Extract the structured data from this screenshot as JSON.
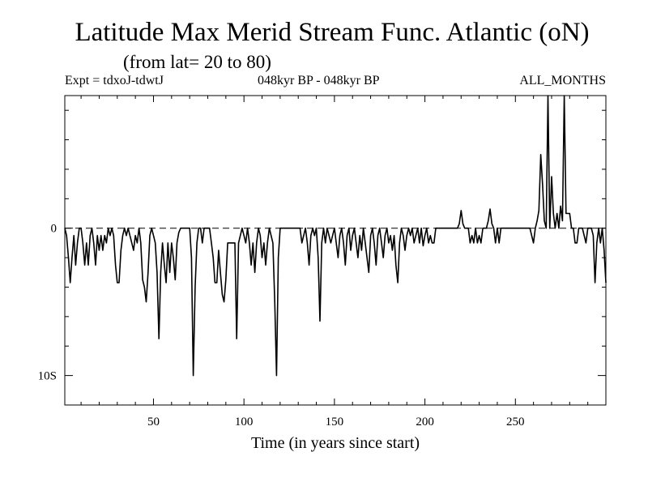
{
  "header": {
    "title": "Latitude Max Merid Stream Func. Atlantic (oN)",
    "subtitle": "(from lat= 20 to 80)",
    "expt": "Expt = tdxoJ-tdwtJ",
    "period": "048kyr BP - 048kyr BP",
    "months": "ALL_MONTHS"
  },
  "chart_data": {
    "type": "line",
    "title": "Latitude Max Merid Stream Func. Atlantic (oN)",
    "xlabel": "Time (in years since start)",
    "ylabel": "",
    "xlim": [
      1,
      300
    ],
    "ylim": [
      -12,
      9
    ],
    "reference_line": 0,
    "x_ticks": [
      50,
      100,
      150,
      200,
      250
    ],
    "y_ticks": [
      {
        "value": 0,
        "label": "0"
      },
      {
        "value": -10,
        "label": "10S"
      }
    ],
    "series": [
      {
        "color": "#000000",
        "points": [
          [
            1,
            0
          ],
          [
            2,
            -0.5
          ],
          [
            3,
            -2
          ],
          [
            4,
            -3.7
          ],
          [
            5,
            -2
          ],
          [
            6,
            -0.5
          ],
          [
            7,
            -2.5
          ],
          [
            8,
            -1
          ],
          [
            9,
            0
          ],
          [
            10,
            0
          ],
          [
            11,
            -1
          ],
          [
            12,
            -2.5
          ],
          [
            13,
            -1
          ],
          [
            14,
            -2.5
          ],
          [
            15,
            -0.5
          ],
          [
            16,
            0
          ],
          [
            17,
            -1
          ],
          [
            18,
            -2.5
          ],
          [
            19,
            -0.5
          ],
          [
            20,
            -1.5
          ],
          [
            21,
            -0.5
          ],
          [
            22,
            -1.5
          ],
          [
            23,
            -0.5
          ],
          [
            24,
            -1
          ],
          [
            25,
            0
          ],
          [
            26,
            -0.5
          ],
          [
            27,
            0
          ],
          [
            28,
            -0.5
          ],
          [
            29,
            -2.5
          ],
          [
            30,
            -3.7
          ],
          [
            31,
            -3.7
          ],
          [
            32,
            -1.5
          ],
          [
            33,
            -0.5
          ],
          [
            34,
            0
          ],
          [
            35,
            -0.5
          ],
          [
            36,
            0
          ],
          [
            37,
            -0.5
          ],
          [
            38,
            -1
          ],
          [
            39,
            -1.5
          ],
          [
            40,
            -0.5
          ],
          [
            41,
            -1
          ],
          [
            42,
            0
          ],
          [
            43,
            -1
          ],
          [
            44,
            -3.5
          ],
          [
            45,
            -4
          ],
          [
            46,
            -5
          ],
          [
            47,
            -3
          ],
          [
            48,
            -0.5
          ],
          [
            49,
            0
          ],
          [
            50,
            -0.5
          ],
          [
            51,
            -1
          ],
          [
            52,
            -3
          ],
          [
            53,
            -7.5
          ],
          [
            54,
            -3
          ],
          [
            55,
            -1
          ],
          [
            56,
            -2.5
          ],
          [
            57,
            -3.7
          ],
          [
            58,
            -1
          ],
          [
            59,
            -3
          ],
          [
            60,
            -1
          ],
          [
            61,
            -2
          ],
          [
            62,
            -3.5
          ],
          [
            63,
            -1
          ],
          [
            64,
            -0.3
          ],
          [
            65,
            0
          ],
          [
            66,
            0
          ],
          [
            67,
            0
          ],
          [
            68,
            0
          ],
          [
            69,
            0
          ],
          [
            70,
            0
          ],
          [
            71,
            -2
          ],
          [
            72,
            -10
          ],
          [
            73,
            -4
          ],
          [
            74,
            -1
          ],
          [
            75,
            0
          ],
          [
            76,
            0
          ],
          [
            77,
            -1
          ],
          [
            78,
            0
          ],
          [
            79,
            0
          ],
          [
            80,
            0
          ],
          [
            81,
            0
          ],
          [
            82,
            -1
          ],
          [
            83,
            -2
          ],
          [
            84,
            -3.7
          ],
          [
            85,
            -3.7
          ],
          [
            86,
            -1.5
          ],
          [
            87,
            -3
          ],
          [
            88,
            -4.5
          ],
          [
            89,
            -5
          ],
          [
            90,
            -3.5
          ],
          [
            91,
            -1
          ],
          [
            92,
            -1
          ],
          [
            93,
            -1
          ],
          [
            94,
            -1
          ],
          [
            95,
            -1
          ],
          [
            96,
            -7.5
          ],
          [
            97,
            -1
          ],
          [
            98,
            -0.5
          ],
          [
            99,
            0
          ],
          [
            100,
            -0.5
          ],
          [
            101,
            -1
          ],
          [
            102,
            0
          ],
          [
            103,
            -1
          ],
          [
            104,
            -2.5
          ],
          [
            105,
            -1
          ],
          [
            106,
            -3
          ],
          [
            107,
            -1
          ],
          [
            108,
            0
          ],
          [
            109,
            -0.5
          ],
          [
            110,
            -2
          ],
          [
            111,
            -1
          ],
          [
            112,
            -2.5
          ],
          [
            113,
            -1
          ],
          [
            114,
            0
          ],
          [
            115,
            -0.5
          ],
          [
            116,
            -1
          ],
          [
            117,
            -5
          ],
          [
            118,
            -10
          ],
          [
            119,
            -2
          ],
          [
            120,
            0
          ],
          [
            121,
            0
          ],
          [
            122,
            0
          ],
          [
            123,
            0
          ],
          [
            124,
            0
          ],
          [
            125,
            0
          ],
          [
            126,
            0
          ],
          [
            127,
            0
          ],
          [
            128,
            0
          ],
          [
            129,
            0
          ],
          [
            130,
            0
          ],
          [
            131,
            0
          ],
          [
            132,
            -1
          ],
          [
            133,
            -0.5
          ],
          [
            134,
            0
          ],
          [
            135,
            -1
          ],
          [
            136,
            -2.5
          ],
          [
            137,
            -0.5
          ],
          [
            138,
            0
          ],
          [
            139,
            -0.5
          ],
          [
            140,
            0
          ],
          [
            141,
            -2
          ],
          [
            142,
            -6.3
          ],
          [
            143,
            -1
          ],
          [
            144,
            0
          ],
          [
            145,
            -1
          ],
          [
            146,
            0
          ],
          [
            147,
            -0.5
          ],
          [
            148,
            -1
          ],
          [
            149,
            -0.5
          ],
          [
            150,
            0
          ],
          [
            151,
            -1
          ],
          [
            152,
            -2
          ],
          [
            153,
            -0.5
          ],
          [
            154,
            0
          ],
          [
            155,
            -1
          ],
          [
            156,
            -2.5
          ],
          [
            157,
            -0.5
          ],
          [
            158,
            0
          ],
          [
            159,
            -1.5
          ],
          [
            160,
            -0.5
          ],
          [
            161,
            0
          ],
          [
            162,
            -1
          ],
          [
            163,
            -2
          ],
          [
            164,
            -0.5
          ],
          [
            165,
            -1.5
          ],
          [
            166,
            0
          ],
          [
            167,
            -1
          ],
          [
            168,
            -2
          ],
          [
            169,
            -3
          ],
          [
            170,
            -0.5
          ],
          [
            171,
            0
          ],
          [
            172,
            -1
          ],
          [
            173,
            -2.5
          ],
          [
            174,
            -0.5
          ],
          [
            175,
            0
          ],
          [
            176,
            -1
          ],
          [
            177,
            -2
          ],
          [
            178,
            -0.5
          ],
          [
            179,
            0
          ],
          [
            180,
            -1
          ],
          [
            181,
            -0.5
          ],
          [
            182,
            -1.5
          ],
          [
            183,
            -0.5
          ],
          [
            184,
            -2.5
          ],
          [
            185,
            -3.7
          ],
          [
            186,
            -1
          ],
          [
            187,
            0
          ],
          [
            188,
            -0.5
          ],
          [
            189,
            -1.5
          ],
          [
            190,
            -0.5
          ],
          [
            191,
            0
          ],
          [
            192,
            -0.5
          ],
          [
            193,
            0
          ],
          [
            194,
            -1
          ],
          [
            195,
            -0.5
          ],
          [
            196,
            0
          ],
          [
            197,
            -1
          ],
          [
            198,
            0
          ],
          [
            199,
            -1.2
          ],
          [
            200,
            -0.5
          ],
          [
            201,
            0
          ],
          [
            202,
            -1
          ],
          [
            203,
            -0.5
          ],
          [
            204,
            -1
          ],
          [
            205,
            -1
          ],
          [
            206,
            0
          ],
          [
            207,
            0
          ],
          [
            208,
            0
          ],
          [
            209,
            0
          ],
          [
            210,
            0
          ],
          [
            211,
            0
          ],
          [
            212,
            0
          ],
          [
            213,
            0
          ],
          [
            214,
            0
          ],
          [
            215,
            0
          ],
          [
            216,
            0
          ],
          [
            217,
            0
          ],
          [
            218,
            0
          ],
          [
            219,
            0.3
          ],
          [
            220,
            1.2
          ],
          [
            221,
            0.3
          ],
          [
            222,
            0
          ],
          [
            223,
            0
          ],
          [
            224,
            0
          ],
          [
            225,
            -1
          ],
          [
            226,
            -0.5
          ],
          [
            227,
            -1
          ],
          [
            228,
            0
          ],
          [
            229,
            -1
          ],
          [
            230,
            -0.5
          ],
          [
            231,
            -1
          ],
          [
            232,
            0
          ],
          [
            233,
            0
          ],
          [
            234,
            0
          ],
          [
            235,
            0.5
          ],
          [
            236,
            1.3
          ],
          [
            237,
            0.3
          ],
          [
            238,
            0
          ],
          [
            239,
            -1
          ],
          [
            240,
            0
          ],
          [
            241,
            -1
          ],
          [
            242,
            0
          ],
          [
            243,
            0
          ],
          [
            244,
            0
          ],
          [
            245,
            0
          ],
          [
            246,
            0
          ],
          [
            247,
            0
          ],
          [
            248,
            0
          ],
          [
            249,
            0
          ],
          [
            250,
            0
          ],
          [
            251,
            0
          ],
          [
            252,
            0
          ],
          [
            253,
            0
          ],
          [
            254,
            0
          ],
          [
            255,
            0
          ],
          [
            256,
            0
          ],
          [
            257,
            0
          ],
          [
            258,
            0
          ],
          [
            259,
            -0.5
          ],
          [
            260,
            -1
          ],
          [
            261,
            0
          ],
          [
            262,
            0.5
          ],
          [
            263,
            1.2
          ],
          [
            264,
            5
          ],
          [
            265,
            3
          ],
          [
            266,
            0.5
          ],
          [
            267,
            0
          ],
          [
            268,
            9
          ],
          [
            269,
            0
          ],
          [
            270,
            3.5
          ],
          [
            271,
            1
          ],
          [
            272,
            0
          ],
          [
            273,
            1
          ],
          [
            274,
            0
          ],
          [
            275,
            1.5
          ],
          [
            276,
            0.5
          ],
          [
            277,
            9
          ],
          [
            278,
            1
          ],
          [
            279,
            1
          ],
          [
            280,
            1
          ],
          [
            281,
            0
          ],
          [
            282,
            0
          ],
          [
            283,
            -1
          ],
          [
            284,
            -1
          ],
          [
            285,
            0
          ],
          [
            286,
            0
          ],
          [
            287,
            0
          ],
          [
            288,
            -0.5
          ],
          [
            289,
            -1
          ],
          [
            290,
            0
          ],
          [
            291,
            0
          ],
          [
            292,
            0
          ],
          [
            293,
            -0.5
          ],
          [
            294,
            -3.7
          ],
          [
            295,
            -1
          ],
          [
            296,
            0
          ],
          [
            297,
            -1
          ],
          [
            298,
            0
          ],
          [
            299,
            -1.5
          ],
          [
            300,
            -3.7
          ]
        ]
      }
    ]
  }
}
